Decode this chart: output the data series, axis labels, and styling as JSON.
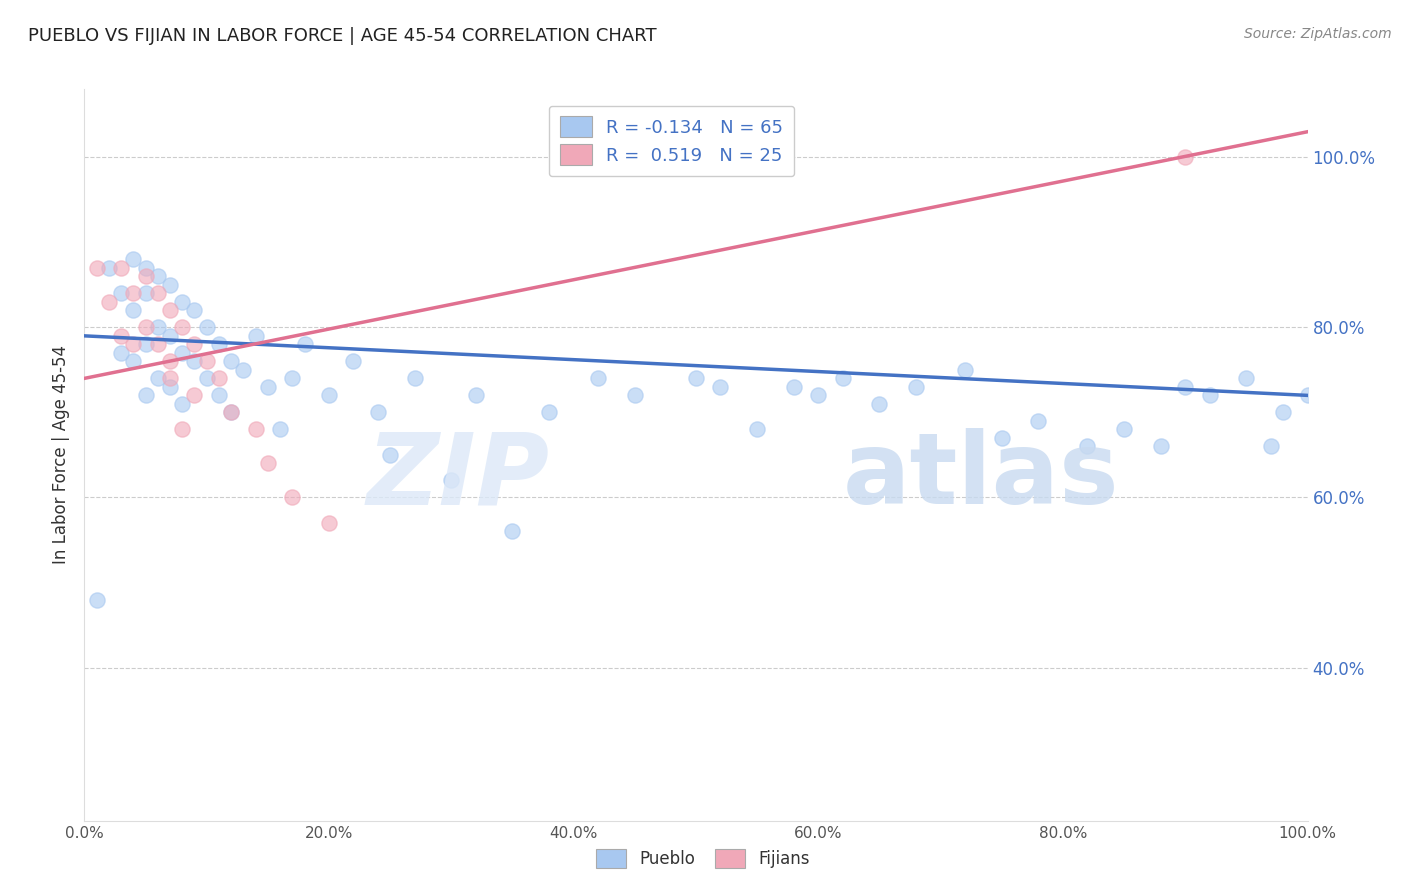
{
  "title": "PUEBLO VS FIJIAN IN LABOR FORCE | AGE 45-54 CORRELATION CHART",
  "ylabel": "In Labor Force | Age 45-54",
  "source_text": "Source: ZipAtlas.com",
  "xlim": [
    0.0,
    1.0
  ],
  "ylim": [
    0.22,
    1.08
  ],
  "x_tick_labels": [
    "0.0%",
    "20.0%",
    "40.0%",
    "60.0%",
    "80.0%",
    "100.0%"
  ],
  "x_tick_vals": [
    0.0,
    0.2,
    0.4,
    0.6,
    0.8,
    1.0
  ],
  "y_tick_labels": [
    "40.0%",
    "60.0%",
    "80.0%",
    "100.0%"
  ],
  "y_tick_vals": [
    0.4,
    0.6,
    0.8,
    1.0
  ],
  "pueblo_color": "#a8c8f0",
  "fijian_color": "#f0a8b8",
  "pueblo_line_color": "#4472c4",
  "fijian_line_color": "#e07090",
  "pueblo_R": -0.134,
  "pueblo_N": 65,
  "fijian_R": 0.519,
  "fijian_N": 25,
  "pueblo_line_x0": 0.0,
  "pueblo_line_y0": 0.79,
  "pueblo_line_x1": 1.0,
  "pueblo_line_y1": 0.72,
  "fijian_line_x0": 0.0,
  "fijian_line_y0": 0.74,
  "fijian_line_x1": 1.0,
  "fijian_line_y1": 1.03,
  "pueblo_x": [
    0.01,
    0.02,
    0.03,
    0.03,
    0.04,
    0.04,
    0.04,
    0.05,
    0.05,
    0.05,
    0.05,
    0.06,
    0.06,
    0.06,
    0.07,
    0.07,
    0.07,
    0.08,
    0.08,
    0.08,
    0.09,
    0.09,
    0.1,
    0.1,
    0.11,
    0.11,
    0.12,
    0.12,
    0.13,
    0.14,
    0.15,
    0.16,
    0.17,
    0.18,
    0.2,
    0.22,
    0.24,
    0.25,
    0.27,
    0.3,
    0.32,
    0.35,
    0.38,
    0.42,
    0.45,
    0.5,
    0.52,
    0.55,
    0.58,
    0.6,
    0.62,
    0.65,
    0.68,
    0.72,
    0.75,
    0.78,
    0.82,
    0.85,
    0.88,
    0.9,
    0.92,
    0.95,
    0.97,
    0.98,
    1.0
  ],
  "pueblo_y": [
    0.48,
    0.87,
    0.84,
    0.77,
    0.88,
    0.82,
    0.76,
    0.87,
    0.84,
    0.78,
    0.72,
    0.86,
    0.8,
    0.74,
    0.85,
    0.79,
    0.73,
    0.83,
    0.77,
    0.71,
    0.82,
    0.76,
    0.8,
    0.74,
    0.78,
    0.72,
    0.76,
    0.7,
    0.75,
    0.79,
    0.73,
    0.68,
    0.74,
    0.78,
    0.72,
    0.76,
    0.7,
    0.65,
    0.74,
    0.62,
    0.72,
    0.56,
    0.7,
    0.74,
    0.72,
    0.74,
    0.73,
    0.68,
    0.73,
    0.72,
    0.74,
    0.71,
    0.73,
    0.75,
    0.67,
    0.69,
    0.66,
    0.68,
    0.66,
    0.73,
    0.72,
    0.74,
    0.66,
    0.7,
    0.72
  ],
  "fijian_x": [
    0.01,
    0.02,
    0.03,
    0.03,
    0.04,
    0.04,
    0.05,
    0.05,
    0.06,
    0.06,
    0.07,
    0.07,
    0.08,
    0.09,
    0.09,
    0.1,
    0.11,
    0.12,
    0.14,
    0.15,
    0.17,
    0.2,
    0.07,
    0.08,
    0.9
  ],
  "fijian_y": [
    0.87,
    0.83,
    0.79,
    0.87,
    0.84,
    0.78,
    0.86,
    0.8,
    0.84,
    0.78,
    0.82,
    0.76,
    0.8,
    0.78,
    0.72,
    0.76,
    0.74,
    0.7,
    0.68,
    0.64,
    0.6,
    0.57,
    0.74,
    0.68,
    1.0
  ]
}
